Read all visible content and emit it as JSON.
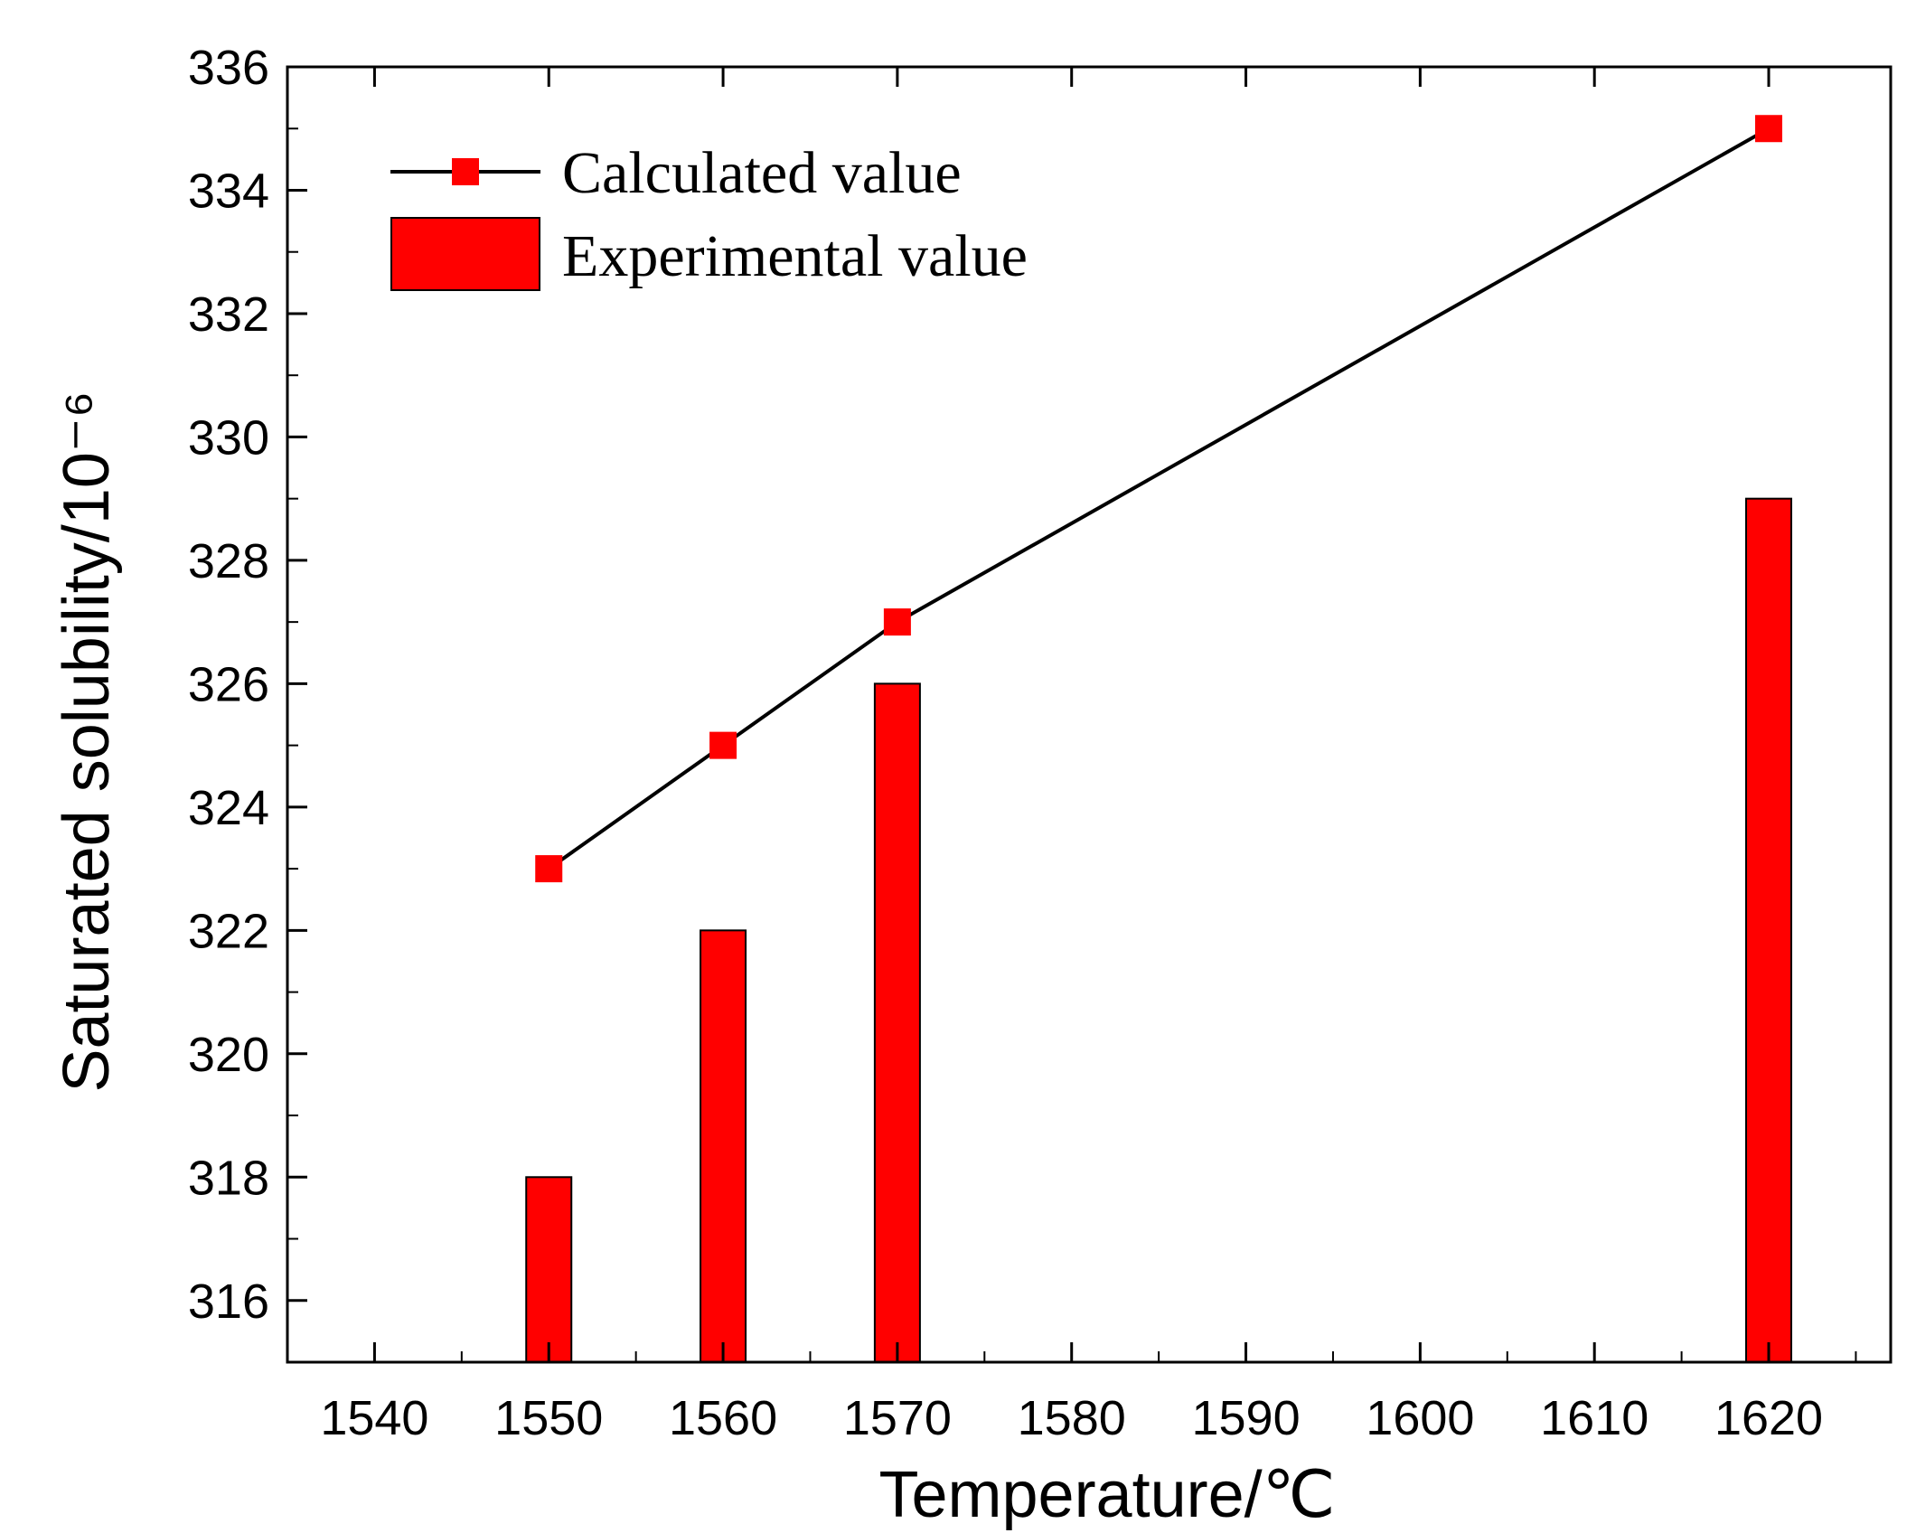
{
  "chart_data": {
    "type": "bar",
    "xlabel": "Temperature/℃",
    "ylabel": "Saturated solubility/10⁻⁶",
    "xlim": [
      1535,
      1627
    ],
    "ylim": [
      315,
      336
    ],
    "x_ticks": [
      1540,
      1550,
      1560,
      1570,
      1580,
      1590,
      1600,
      1610,
      1620
    ],
    "x_tick_labels": [
      "1540",
      "1550",
      "1560",
      "1570",
      "1580",
      "1590",
      "1600",
      "1610",
      "1620"
    ],
    "y_ticks": [
      316,
      318,
      320,
      322,
      324,
      326,
      328,
      330,
      332,
      334,
      336
    ],
    "y_tick_labels": [
      "316",
      "318",
      "320",
      "322",
      "324",
      "326",
      "328",
      "330",
      "332",
      "334",
      "336"
    ],
    "grid": false,
    "legend_position": "top-left",
    "series": [
      {
        "name": "Calculated value",
        "kind": "line-with-square-markers",
        "x": [
          1550,
          1560,
          1570,
          1620
        ],
        "values": [
          323,
          325,
          327,
          335
        ]
      },
      {
        "name": "Experimental value",
        "kind": "bar",
        "x": [
          1550,
          1560,
          1570,
          1620
        ],
        "values": [
          318,
          322,
          326,
          329
        ]
      }
    ],
    "colors": {
      "bar": "#ff0000",
      "marker": "#ff0000",
      "line": "#000000",
      "axis": "#000000"
    }
  }
}
